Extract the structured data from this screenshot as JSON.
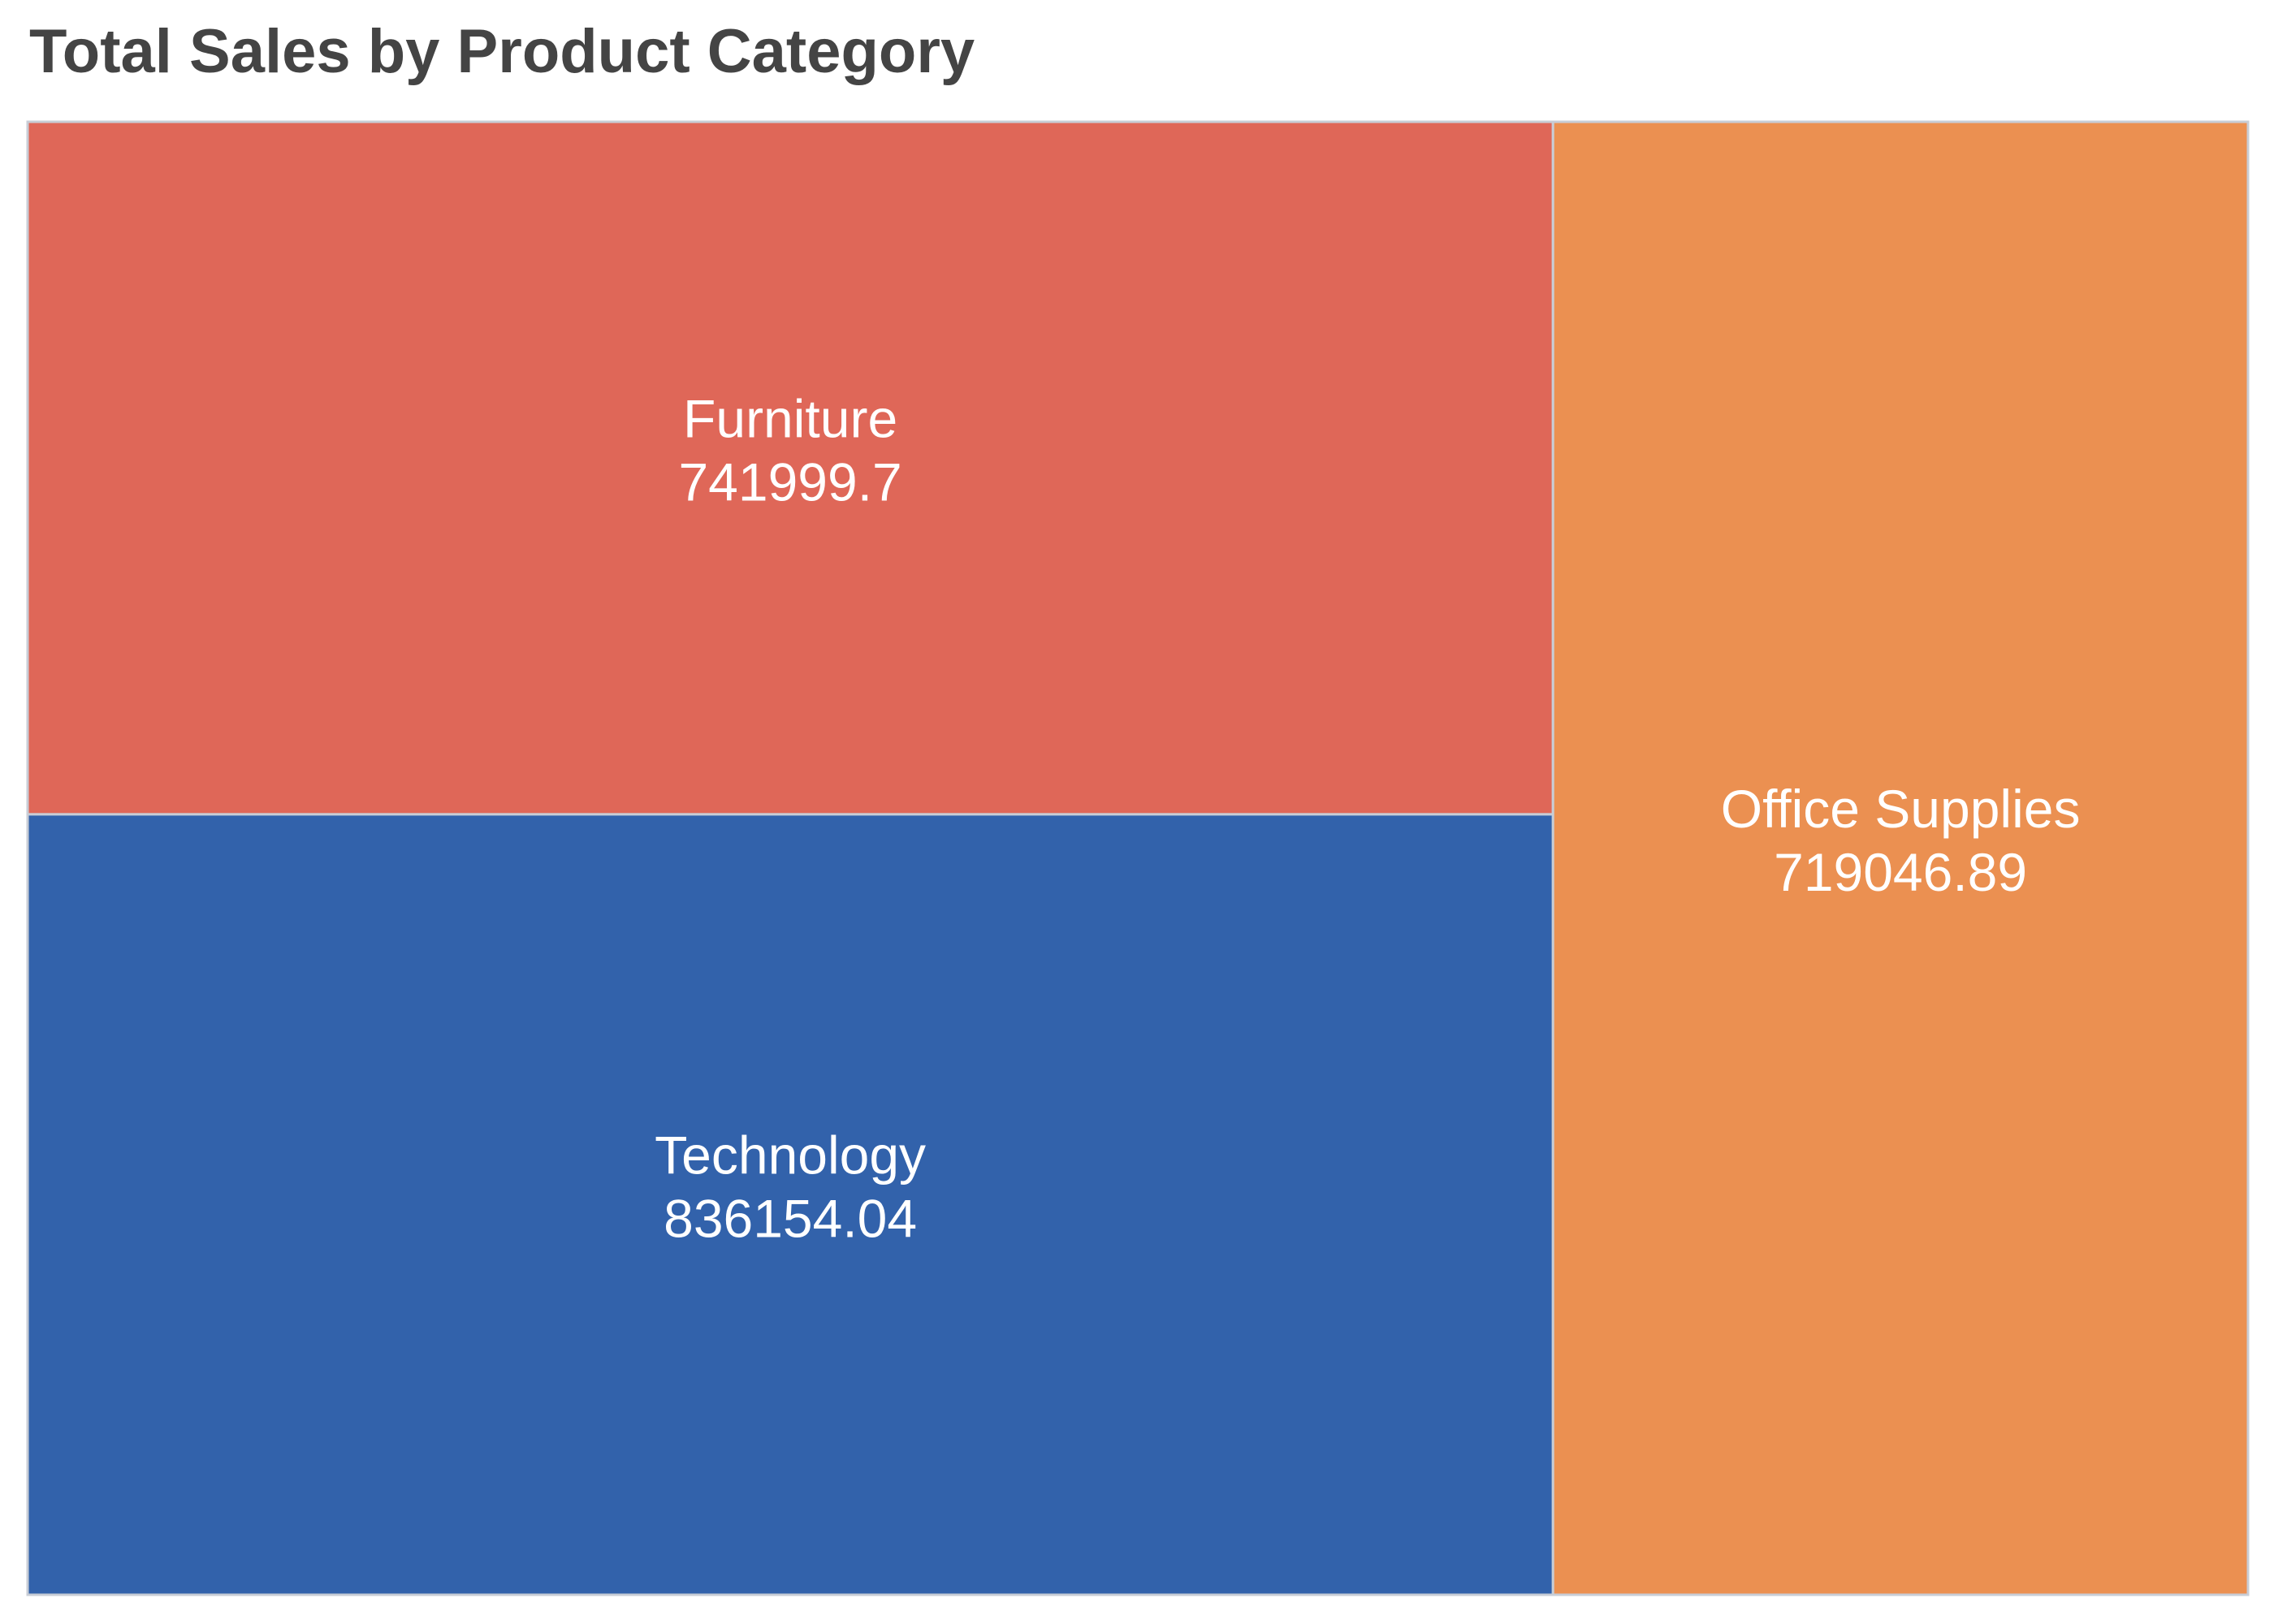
{
  "chart_data": {
    "type": "treemap",
    "title": "Total Sales by Product Category",
    "categories": [
      "Furniture",
      "Technology",
      "Office Supplies"
    ],
    "values": [
      741999.7,
      836154.04,
      719046.89
    ],
    "value_labels": [
      "741999.7",
      "836154.04",
      "719046.89"
    ],
    "colors": [
      "#DF6758",
      "#3262AB",
      "#EB9051"
    ],
    "tile_border_color": "#C8CDD6",
    "label_color": "#FFFFFF"
  }
}
